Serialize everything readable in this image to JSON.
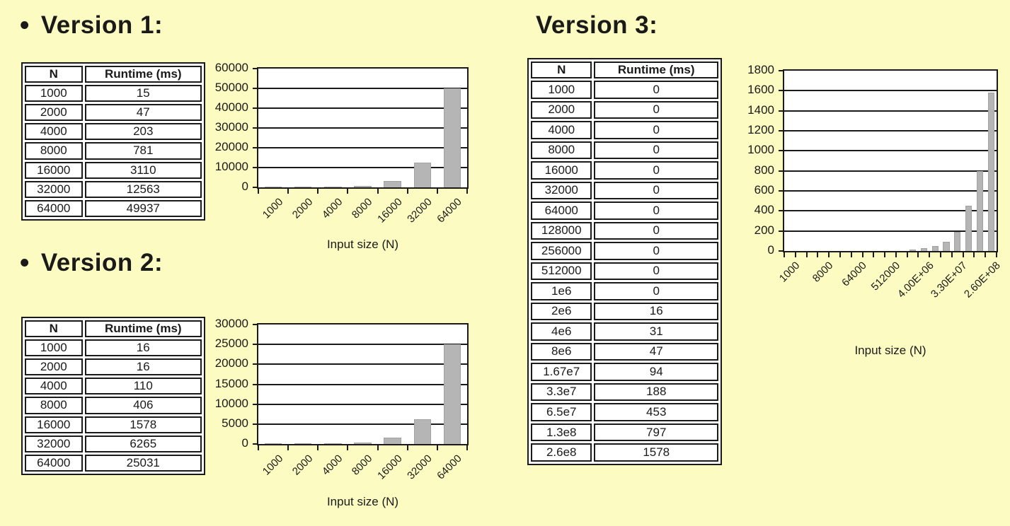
{
  "page": {
    "background_color": "#fcfcc2",
    "text_color": "#1a1a1a",
    "line_color": "#1a1a1a"
  },
  "versions": [
    {
      "bullet": "•",
      "title": "Version 1:",
      "table": {
        "headers": [
          "N",
          "Runtime (ms)"
        ],
        "rows": [
          [
            "1000",
            "15"
          ],
          [
            "2000",
            "47"
          ],
          [
            "4000",
            "203"
          ],
          [
            "8000",
            "781"
          ],
          [
            "16000",
            "3110"
          ],
          [
            "32000",
            "12563"
          ],
          [
            "64000",
            "49937"
          ]
        ]
      }
    },
    {
      "bullet": "•",
      "title": "Version 2:",
      "table": {
        "headers": [
          "N",
          "Runtime (ms)"
        ],
        "rows": [
          [
            "1000",
            "16"
          ],
          [
            "2000",
            "16"
          ],
          [
            "4000",
            "110"
          ],
          [
            "8000",
            "406"
          ],
          [
            "16000",
            "1578"
          ],
          [
            "32000",
            "6265"
          ],
          [
            "64000",
            "25031"
          ]
        ]
      }
    },
    {
      "bullet": "",
      "title": "Version 3:",
      "table": {
        "headers": [
          "N",
          "Runtime (ms)"
        ],
        "rows": [
          [
            "1000",
            "0"
          ],
          [
            "2000",
            "0"
          ],
          [
            "4000",
            "0"
          ],
          [
            "8000",
            "0"
          ],
          [
            "16000",
            "0"
          ],
          [
            "32000",
            "0"
          ],
          [
            "64000",
            "0"
          ],
          [
            "128000",
            "0"
          ],
          [
            "256000",
            "0"
          ],
          [
            "512000",
            "0"
          ],
          [
            "1e6",
            "0"
          ],
          [
            "2e6",
            "16"
          ],
          [
            "4e6",
            "31"
          ],
          [
            "8e6",
            "47"
          ],
          [
            "1.67e7",
            "94"
          ],
          [
            "3.3e7",
            "188"
          ],
          [
            "6.5e7",
            "453"
          ],
          [
            "1.3e8",
            "797"
          ],
          [
            "2.6e8",
            "1578"
          ]
        ]
      }
    }
  ],
  "chart_data": [
    {
      "type": "bar",
      "title": "",
      "categories": [
        "1000",
        "2000",
        "4000",
        "8000",
        "16000",
        "32000",
        "64000"
      ],
      "values": [
        15,
        47,
        203,
        781,
        3110,
        12563,
        49937
      ],
      "xticklabels": [
        "1000",
        "2000",
        "4000",
        "8000",
        "16000",
        "32000",
        "64000"
      ],
      "yticklabels": [
        "0",
        "10000",
        "20000",
        "30000",
        "40000",
        "50000",
        "60000"
      ],
      "xlabel": "Input size (N)",
      "ylabel": "",
      "ylim": [
        0,
        60000
      ],
      "ytick_step": 10000,
      "grid": true,
      "legend": "none",
      "bar_color": "#b5b5b5"
    },
    {
      "type": "bar",
      "title": "",
      "categories": [
        "1000",
        "2000",
        "4000",
        "8000",
        "16000",
        "32000",
        "64000"
      ],
      "values": [
        16,
        16,
        110,
        406,
        1578,
        6265,
        25031
      ],
      "xticklabels": [
        "1000",
        "2000",
        "4000",
        "8000",
        "16000",
        "32000",
        "64000"
      ],
      "yticklabels": [
        "0",
        "5000",
        "10000",
        "15000",
        "20000",
        "25000",
        "30000"
      ],
      "xlabel": "Input size (N)",
      "ylabel": "",
      "ylim": [
        0,
        30000
      ],
      "ytick_step": 5000,
      "grid": true,
      "legend": "none",
      "bar_color": "#b5b5b5"
    },
    {
      "type": "bar",
      "title": "",
      "categories": [
        "1000",
        "2000",
        "4000",
        "8000",
        "16000",
        "32000",
        "64000",
        "128000",
        "256000",
        "512000",
        "1e6",
        "2e6",
        "4e6",
        "8e6",
        "1.67e7",
        "3.3e7",
        "6.5e7",
        "1.3e8",
        "2.6e8"
      ],
      "values": [
        0,
        0,
        0,
        0,
        0,
        0,
        0,
        0,
        0,
        0,
        0,
        16,
        31,
        47,
        94,
        188,
        453,
        797,
        1578
      ],
      "xticklabels": [
        "1000",
        "",
        "",
        "8000",
        "",
        "",
        "64000",
        "",
        "",
        "512000",
        "",
        "",
        "4.00E+06",
        "",
        "",
        "3.30E+07",
        "",
        "",
        "2.60E+08"
      ],
      "yticklabels": [
        "0",
        "200",
        "400",
        "600",
        "800",
        "1000",
        "1200",
        "1400",
        "1600",
        "1800"
      ],
      "xlabel": "Input size (N)",
      "ylabel": "",
      "ylim": [
        0,
        1800
      ],
      "ytick_step": 200,
      "grid": true,
      "legend": "none",
      "bar_color": "#b5b5b5"
    }
  ]
}
